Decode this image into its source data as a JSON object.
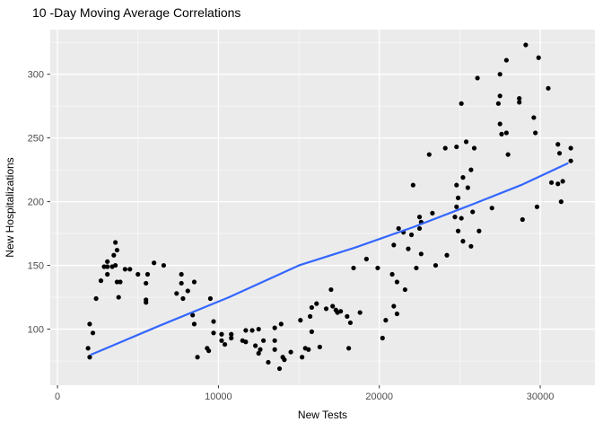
{
  "chart": {
    "title": "10 -Day Moving Average Correlations",
    "xlabel": "New Tests",
    "ylabel": "New Hospitalizations"
  },
  "colors": {
    "panel_bg": "#EBEBEB",
    "grid_major": "#FFFFFF",
    "grid_minor": "#F6F6F6",
    "point": "#000000",
    "smooth_line": "#3366FF",
    "tick_label": "#4D4D4D",
    "tick_mark": "#333333",
    "title_text": "#000000"
  },
  "chart_data": {
    "type": "scatter",
    "title": "10 -Day Moving Average Correlations",
    "xlabel": "New Tests",
    "ylabel": "New Hospitalizations",
    "x_ticks": [
      0,
      10000,
      20000,
      30000
    ],
    "y_ticks": [
      100,
      150,
      200,
      250,
      300
    ],
    "x_minor_step": 5000,
    "y_minor_step": 25,
    "xlim": [
      -450,
      33400
    ],
    "ylim": [
      56,
      335
    ],
    "grid": true,
    "legend": false,
    "points": [
      [
        1900,
        85
      ],
      [
        2000,
        78
      ],
      [
        2000,
        104
      ],
      [
        2200,
        97
      ],
      [
        2400,
        124
      ],
      [
        2700,
        138
      ],
      [
        2900,
        149
      ],
      [
        3100,
        153
      ],
      [
        3100,
        149
      ],
      [
        3100,
        143
      ],
      [
        3400,
        149
      ],
      [
        3500,
        158
      ],
      [
        3600,
        168
      ],
      [
        3600,
        150
      ],
      [
        3700,
        162
      ],
      [
        3700,
        137
      ],
      [
        3800,
        125
      ],
      [
        3900,
        137
      ],
      [
        4200,
        147
      ],
      [
        4500,
        147
      ],
      [
        5000,
        143
      ],
      [
        5500,
        136
      ],
      [
        5500,
        123
      ],
      [
        5500,
        121
      ],
      [
        5600,
        143
      ],
      [
        6000,
        152
      ],
      [
        6600,
        150
      ],
      [
        7400,
        128
      ],
      [
        7700,
        143
      ],
      [
        7700,
        136
      ],
      [
        7800,
        124
      ],
      [
        8100,
        130
      ],
      [
        8400,
        111
      ],
      [
        8500,
        137
      ],
      [
        8500,
        104
      ],
      [
        8700,
        78
      ],
      [
        9300,
        85
      ],
      [
        9400,
        83
      ],
      [
        9500,
        124
      ],
      [
        9700,
        106
      ],
      [
        9700,
        97
      ],
      [
        10200,
        96
      ],
      [
        10200,
        91
      ],
      [
        10400,
        88
      ],
      [
        10800,
        96
      ],
      [
        10800,
        93
      ],
      [
        11500,
        91
      ],
      [
        11700,
        99
      ],
      [
        11700,
        90
      ],
      [
        12100,
        99
      ],
      [
        12300,
        87
      ],
      [
        12500,
        100
      ],
      [
        12500,
        81
      ],
      [
        12600,
        84
      ],
      [
        12800,
        91
      ],
      [
        13100,
        74
      ],
      [
        13500,
        101
      ],
      [
        13500,
        91
      ],
      [
        13500,
        84
      ],
      [
        13800,
        69
      ],
      [
        13900,
        104
      ],
      [
        14000,
        78
      ],
      [
        14100,
        76
      ],
      [
        14500,
        82
      ],
      [
        15100,
        107
      ],
      [
        15200,
        78
      ],
      [
        15400,
        85
      ],
      [
        15600,
        84
      ],
      [
        15700,
        110
      ],
      [
        15800,
        117
      ],
      [
        15800,
        98
      ],
      [
        16100,
        120
      ],
      [
        16300,
        86
      ],
      [
        16700,
        116
      ],
      [
        17000,
        131
      ],
      [
        17100,
        118
      ],
      [
        17300,
        115
      ],
      [
        17400,
        113
      ],
      [
        17600,
        114
      ],
      [
        18000,
        110
      ],
      [
        18100,
        85
      ],
      [
        18200,
        105
      ],
      [
        18400,
        148
      ],
      [
        18800,
        113
      ],
      [
        19200,
        155
      ],
      [
        19900,
        148
      ],
      [
        20200,
        93
      ],
      [
        20400,
        107
      ],
      [
        20800,
        143
      ],
      [
        20900,
        166
      ],
      [
        20900,
        118
      ],
      [
        21100,
        137
      ],
      [
        21100,
        112
      ],
      [
        21200,
        179
      ],
      [
        21500,
        176
      ],
      [
        21600,
        131
      ],
      [
        21800,
        163
      ],
      [
        22000,
        174
      ],
      [
        22300,
        148
      ],
      [
        22500,
        188
      ],
      [
        22500,
        179
      ],
      [
        22600,
        184
      ],
      [
        22600,
        159
      ],
      [
        23300,
        191
      ],
      [
        23500,
        150
      ],
      [
        24200,
        158
      ],
      [
        24700,
        188
      ],
      [
        24800,
        196
      ],
      [
        24900,
        177
      ],
      [
        25100,
        187
      ],
      [
        25200,
        169
      ],
      [
        25700,
        165
      ],
      [
        25800,
        192
      ],
      [
        26200,
        177
      ],
      [
        27000,
        195
      ],
      [
        28900,
        186
      ],
      [
        22100,
        213
      ],
      [
        23100,
        237
      ],
      [
        24100,
        242
      ],
      [
        24800,
        243
      ],
      [
        24800,
        213
      ],
      [
        24900,
        203
      ],
      [
        25100,
        277
      ],
      [
        25200,
        219
      ],
      [
        25400,
        247
      ],
      [
        25500,
        211
      ],
      [
        25700,
        225
      ],
      [
        25900,
        242
      ],
      [
        26100,
        297
      ],
      [
        27400,
        277
      ],
      [
        27500,
        300
      ],
      [
        27500,
        283
      ],
      [
        27500,
        261
      ],
      [
        27600,
        253
      ],
      [
        27900,
        311
      ],
      [
        27900,
        254
      ],
      [
        28000,
        237
      ],
      [
        28700,
        281
      ],
      [
        28700,
        278
      ],
      [
        29100,
        323
      ],
      [
        29600,
        266
      ],
      [
        29700,
        254
      ],
      [
        29800,
        196
      ],
      [
        29900,
        313
      ],
      [
        30500,
        289
      ],
      [
        30700,
        215
      ],
      [
        31100,
        245
      ],
      [
        31100,
        214
      ],
      [
        31200,
        238
      ],
      [
        31300,
        200
      ],
      [
        31400,
        216
      ],
      [
        31900,
        242
      ],
      [
        31900,
        232
      ]
    ],
    "trend_line": {
      "points": [
        [
          2100,
          80
        ],
        [
          6400,
          103
        ],
        [
          10650,
          125
        ],
        [
          15000,
          150
        ],
        [
          18500,
          164
        ],
        [
          22100,
          180
        ],
        [
          25800,
          198
        ],
        [
          28800,
          213
        ],
        [
          31700,
          230
        ]
      ]
    }
  }
}
